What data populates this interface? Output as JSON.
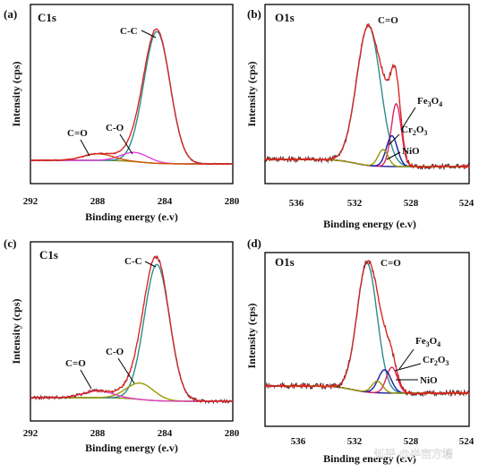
{
  "watermark": "知乎 @半亩方塘",
  "chart_data": [
    {
      "panel": "(a)",
      "spectrum": "C1s",
      "type": "line",
      "xlabel": "Binding energy (e.v)",
      "ylabel": "Intensity (cps)",
      "xlim": [
        292,
        280
      ],
      "xticks": [
        "292",
        "288",
        "284",
        "280"
      ],
      "peaks": [
        {
          "name": "C-C",
          "center": 284.5,
          "height": 1.0,
          "width": 1.25,
          "color": "#2e8b8b"
        },
        {
          "name": "C-O",
          "center": 285.8,
          "height": 0.07,
          "width": 1.3,
          "color": "#e040e0"
        },
        {
          "name": "C=O",
          "center": 288.0,
          "height": 0.05,
          "width": 1.4,
          "color": "#cc5500"
        }
      ],
      "envelope_color": "#e02020",
      "background_color": "#8a8a20"
    },
    {
      "panel": "(b)",
      "spectrum": "O1s",
      "type": "line",
      "xlabel": "Binding energy (e.v)",
      "ylabel": "Intensity (cps)",
      "xlim": [
        538,
        524
      ],
      "xticks": [
        "536",
        "532",
        "528",
        "524"
      ],
      "peaks": [
        {
          "name": "C=O",
          "center": 530.9,
          "height": 1.0,
          "width": 1.3,
          "color": "#2e8b8b"
        },
        {
          "name": "Fe3O4",
          "center": 529.0,
          "height": 0.45,
          "width": 0.55,
          "color": "#e02060"
        },
        {
          "name": "Cr2O3",
          "center": 529.3,
          "height": 0.22,
          "width": 0.6,
          "color": "#1a1aa0"
        },
        {
          "name": "NiO",
          "center": 529.9,
          "height": 0.12,
          "width": 0.55,
          "color": "#999900"
        }
      ],
      "envelope_color": "#e02020",
      "background_color": "#1a1aa0"
    },
    {
      "panel": "(c)",
      "spectrum": "C1s",
      "type": "line",
      "xlabel": "Binding energy (e.v)",
      "ylabel": "Intensity (cps)",
      "xlim": [
        292,
        280
      ],
      "xticks": [
        "292",
        "288",
        "284",
        "280"
      ],
      "peaks": [
        {
          "name": "C-C",
          "center": 284.5,
          "height": 1.0,
          "width": 1.2,
          "color": "#2e8b8b"
        },
        {
          "name": "C-O",
          "center": 285.5,
          "height": 0.12,
          "width": 1.3,
          "color": "#999900"
        },
        {
          "name": "C=O",
          "center": 288.0,
          "height": 0.05,
          "width": 1.4,
          "color": "#e040c0"
        }
      ],
      "envelope_color": "#e02020",
      "background_color": "#8a8a20"
    },
    {
      "panel": "(d)",
      "spectrum": "O1s",
      "type": "line",
      "xlabel": "Binding energy (e.v)",
      "ylabel": "Intensity (cps)",
      "xlim": [
        538,
        524
      ],
      "xticks": [
        "536",
        "532",
        "528",
        "524"
      ],
      "peaks": [
        {
          "name": "C=O",
          "center": 531.0,
          "height": 1.0,
          "width": 1.1,
          "color": "#2e8b8b"
        },
        {
          "name": "Fe3O4",
          "center": 529.3,
          "height": 0.2,
          "width": 0.6,
          "color": "#e02060"
        },
        {
          "name": "Cr2O3",
          "center": 529.8,
          "height": 0.18,
          "width": 0.7,
          "color": "#1a1aa0"
        },
        {
          "name": "NiO",
          "center": 530.3,
          "height": 0.09,
          "width": 0.6,
          "color": "#999900"
        }
      ],
      "envelope_color": "#e02020",
      "background_color": "#1a1aa0"
    }
  ]
}
